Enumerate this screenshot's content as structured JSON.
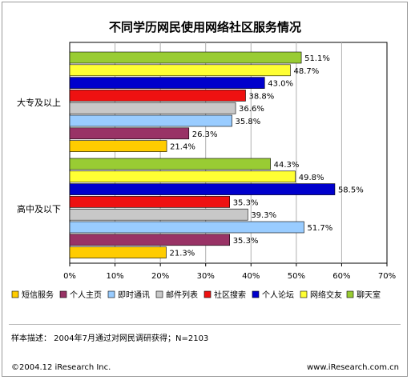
{
  "chart_data": {
    "type": "bar",
    "orientation": "horizontal",
    "title": "不同学历网民使用网络社区服务情况",
    "groups": [
      "大专及以上",
      "高中及以下"
    ],
    "x_axis": {
      "min": 0,
      "max": 70,
      "step": 10,
      "unit": "%",
      "ticks": [
        "0%",
        "10%",
        "20%",
        "30%",
        "40%",
        "50%",
        "60%",
        "70%"
      ]
    },
    "grid": true,
    "legend_position": "bottom",
    "series": [
      {
        "name": "聊天室",
        "color": "#99cc33",
        "values": [
          51.1,
          44.3
        ],
        "labels": [
          "51.1%",
          "44.3%"
        ]
      },
      {
        "name": "网络交友",
        "color": "#ffff33",
        "values": [
          48.7,
          49.8
        ],
        "labels": [
          "48.7%",
          "49.8%"
        ]
      },
      {
        "name": "个人论坛",
        "color": "#0000cc",
        "values": [
          43.0,
          58.5
        ],
        "labels": [
          "43.0%",
          "58.5%"
        ]
      },
      {
        "name": "社区搜索",
        "color": "#ee1111",
        "values": [
          38.8,
          35.3
        ],
        "labels": [
          "38.8%",
          "35.3%"
        ]
      },
      {
        "name": "邮件列表",
        "color": "#c8c8c8",
        "values": [
          36.6,
          39.3
        ],
        "labels": [
          "36.6%",
          "39.3%"
        ]
      },
      {
        "name": "即时通讯",
        "color": "#99ccff",
        "values": [
          35.8,
          51.7
        ],
        "labels": [
          "35.8%",
          "51.7%"
        ]
      },
      {
        "name": "个人主页",
        "color": "#993366",
        "values": [
          26.3,
          35.3
        ],
        "labels": [
          "26.3%",
          "35.3%"
        ]
      },
      {
        "name": "短信服务",
        "color": "#ffcc00",
        "values": [
          21.4,
          21.3
        ],
        "labels": [
          "21.4%",
          "21.3%"
        ]
      }
    ],
    "legend_order": [
      "短信服务",
      "个人主页",
      "即时通讯",
      "邮件列表",
      "社区搜索",
      "个人论坛",
      "网络交友",
      "聊天室"
    ]
  },
  "footer": {
    "note": "样本描述：  2004年7月通过对网民调研获得；N=2103",
    "copyright": "©2004.12  iResearch Inc.",
    "url": "www.iResearch.com.cn"
  }
}
